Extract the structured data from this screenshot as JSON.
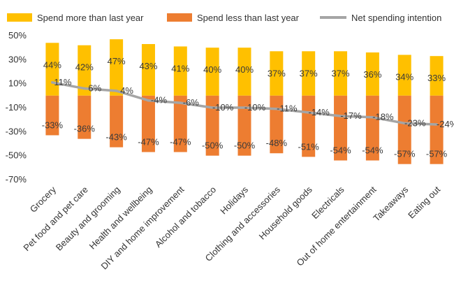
{
  "chart_data": {
    "type": "bar",
    "categories": [
      "Grocery",
      "Pet food and pet care",
      "Beauty and grooming",
      "Health and wellbeing",
      "DIY and home improvement",
      "Alcohol and tobacco",
      "Holidays",
      "Clothing and accessories",
      "Household goods",
      "Electricals",
      "Out of home entertainment",
      "Takeaways",
      "Eating out"
    ],
    "series": [
      {
        "name": "Spend more than last year",
        "type": "bar",
        "color": "#FFC000",
        "values": [
          44,
          42,
          47,
          43,
          41,
          40,
          40,
          37,
          37,
          37,
          36,
          34,
          33
        ],
        "labels": [
          "44%",
          "42%",
          "47%",
          "43%",
          "41%",
          "40%",
          "40%",
          "37%",
          "37%",
          "37%",
          "36%",
          "34%",
          "33%"
        ]
      },
      {
        "name": "Spend less than last year",
        "type": "bar",
        "color": "#ED7D31",
        "values": [
          -33,
          -36,
          -43,
          -47,
          -47,
          -50,
          -50,
          -48,
          -51,
          -54,
          -54,
          -57,
          -57
        ],
        "labels": [
          "-33%",
          "-36%",
          "-43%",
          "-47%",
          "-47%",
          "-50%",
          "-50%",
          "-48%",
          "-51%",
          "-54%",
          "-54%",
          "-57%",
          "-57%"
        ]
      },
      {
        "name": "Net spending intention",
        "type": "line",
        "color": "#A5A5A5",
        "values": [
          11,
          6,
          4,
          -4,
          -6,
          -10,
          -10,
          -11,
          -14,
          -17,
          -18,
          -23,
          -24
        ],
        "labels": [
          "11%",
          "6%",
          "4%",
          "-4%",
          "-6%",
          "-10%",
          "-10%",
          "-11%",
          "-14%",
          "-17%",
          "-18%",
          "-23%",
          "-24%"
        ]
      }
    ],
    "yticks": [
      50,
      30,
      10,
      -10,
      -30,
      -50,
      -70
    ],
    "ytick_labels": [
      "50%",
      "30%",
      "10%",
      "-10%",
      "-30%",
      "-50%",
      "-70%"
    ],
    "ylim": [
      -70,
      50
    ],
    "legend_position": "top",
    "grid": false
  }
}
